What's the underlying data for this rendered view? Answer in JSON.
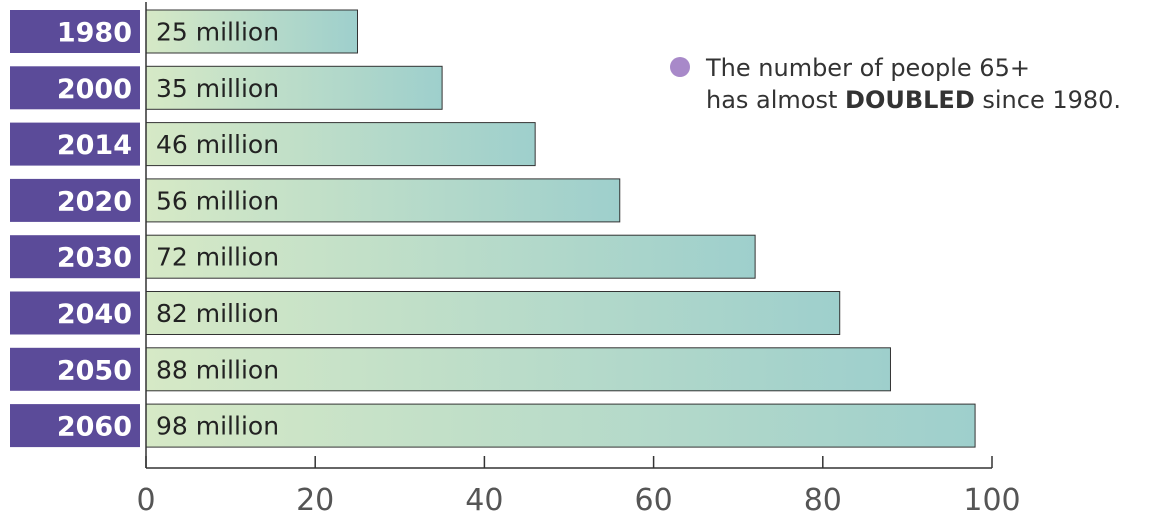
{
  "chart_data": {
    "type": "bar",
    "orientation": "horizontal",
    "categories": [
      "1980",
      "2000",
      "2014",
      "2020",
      "2030",
      "2040",
      "2050",
      "2060"
    ],
    "values": [
      25,
      35,
      46,
      56,
      72,
      82,
      88,
      98
    ],
    "data_labels": [
      "25 million",
      "35 million",
      "46 million",
      "56 million",
      "72 million",
      "82 million",
      "88 million",
      "98 million"
    ],
    "xlim": [
      0,
      100
    ],
    "x_ticks": [
      0,
      20,
      40,
      60,
      80,
      100
    ],
    "x_tick_labels": [
      "0",
      "20",
      "40",
      "60",
      "80",
      "100"
    ],
    "grid": false,
    "title": "",
    "xlabel": "",
    "ylabel": ""
  },
  "annotation": {
    "line1": "The number of people 65+",
    "line2_prefix": "has almost ",
    "line2_bold": "DOUBLED",
    "line2_suffix": " since 1980."
  },
  "colors": {
    "category_box": "#5b4b99",
    "bar_start": "#d6e9c6",
    "bar_end": "#9ecfcc",
    "bullet": "#a889c9"
  }
}
